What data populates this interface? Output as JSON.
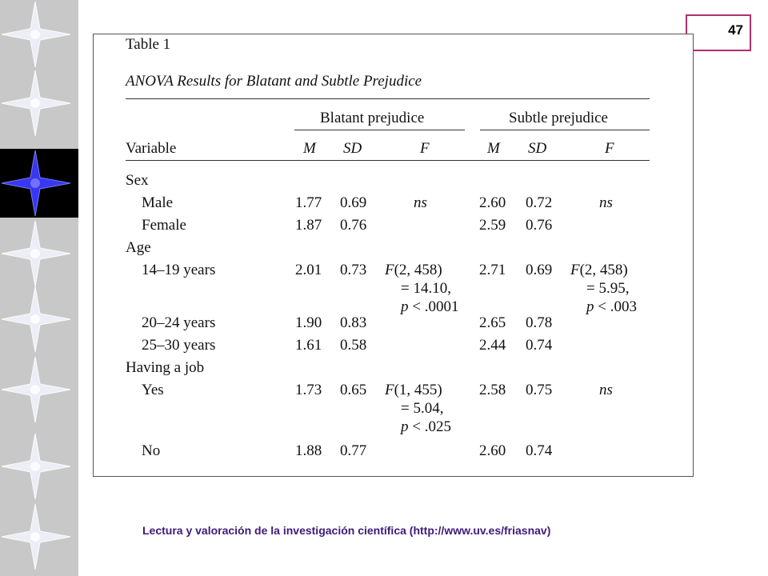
{
  "page_number": "47",
  "sidebar": {
    "star_count": 8,
    "active_index": 2,
    "accent": "#3b3bff"
  },
  "table": {
    "label": "Table 1",
    "caption": "ANOVA Results for Blatant and Subtle Prejudice",
    "groups": [
      "Blatant prejudice",
      "Subtle prejudice"
    ],
    "columns": {
      "variable": "Variable",
      "m": "M",
      "sd": "SD",
      "f": "F"
    },
    "rows": [
      {
        "kind": "section",
        "label": "Sex"
      },
      {
        "kind": "data",
        "label": "Male",
        "b_m": "1.77",
        "b_sd": "0.69",
        "b_f": [
          "ns"
        ],
        "s_m": "2.60",
        "s_sd": "0.72",
        "s_f": [
          "ns"
        ]
      },
      {
        "kind": "data",
        "label": "Female",
        "b_m": "1.87",
        "b_sd": "0.76",
        "b_f": [],
        "s_m": "2.59",
        "s_sd": "0.76",
        "s_f": []
      },
      {
        "kind": "section",
        "label": "Age"
      },
      {
        "kind": "data",
        "label": "14–19 years",
        "b_m": "2.01",
        "b_sd": "0.73",
        "b_f": [
          "F(2, 458)",
          "= 14.10,",
          "p < .0001"
        ],
        "s_m": "2.71",
        "s_sd": "0.69",
        "s_f": [
          "F(2, 458)",
          "= 5.95,",
          "p < .003"
        ]
      },
      {
        "kind": "data",
        "label": "20–24 years",
        "b_m": "1.90",
        "b_sd": "0.83",
        "b_f": [],
        "s_m": "2.65",
        "s_sd": "0.78",
        "s_f": []
      },
      {
        "kind": "data",
        "label": "25–30 years",
        "b_m": "1.61",
        "b_sd": "0.58",
        "b_f": [],
        "s_m": "2.44",
        "s_sd": "0.74",
        "s_f": []
      },
      {
        "kind": "section",
        "label": "Having a job"
      },
      {
        "kind": "data",
        "label": "Yes",
        "b_m": "1.73",
        "b_sd": "0.65",
        "b_f": [
          "F(1, 455)",
          "= 5.04,",
          "p < .025"
        ],
        "s_m": "2.58",
        "s_sd": "0.75",
        "s_f": [
          "ns"
        ]
      },
      {
        "kind": "data",
        "label": "No",
        "b_m": "1.88",
        "b_sd": "0.77",
        "b_f": [],
        "s_m": "2.60",
        "s_sd": "0.74",
        "s_f": []
      }
    ]
  },
  "footer": "Lectura y valoración de la investigación científica  (http://www.uv.es/friasnav)"
}
